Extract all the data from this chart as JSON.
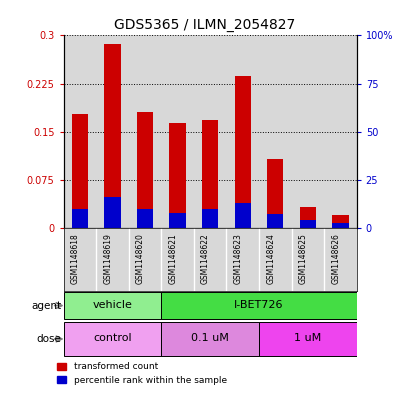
{
  "title": "GDS5365 / ILMN_2054827",
  "samples": [
    "GSM1148618",
    "GSM1148619",
    "GSM1148620",
    "GSM1148621",
    "GSM1148622",
    "GSM1148623",
    "GSM1148624",
    "GSM1148625",
    "GSM1148626"
  ],
  "transformed_count": [
    0.178,
    0.287,
    0.181,
    0.163,
    0.168,
    0.237,
    0.108,
    0.033,
    0.02
  ],
  "percentile_rank_pct": [
    10,
    16,
    10,
    8,
    10,
    13,
    7,
    4,
    2.5
  ],
  "ylim_left": [
    0,
    0.3
  ],
  "ylim_right": [
    0,
    100
  ],
  "yticks_left": [
    0,
    0.075,
    0.15,
    0.225,
    0.3
  ],
  "yticks_right": [
    0,
    25,
    50,
    75,
    100
  ],
  "ytick_labels_left": [
    "0",
    "0.075",
    "0.15",
    "0.225",
    "0.3"
  ],
  "ytick_labels_right": [
    "0",
    "25",
    "50",
    "75",
    "100%"
  ],
  "bar_color_red": "#cc0000",
  "bar_color_blue": "#0000cc",
  "agent_groups": [
    {
      "label": "vehicle",
      "start": 0,
      "end": 2,
      "color": "#90ee90"
    },
    {
      "label": "I-BET726",
      "start": 3,
      "end": 8,
      "color": "#44dd44"
    }
  ],
  "dose_groups": [
    {
      "label": "control",
      "start": 0,
      "end": 2,
      "color": "#f0a0f0"
    },
    {
      "label": "0.1 uM",
      "start": 3,
      "end": 5,
      "color": "#dd88dd"
    },
    {
      "label": "1 uM",
      "start": 6,
      "end": 8,
      "color": "#ee44ee"
    }
  ],
  "agent_label": "agent",
  "dose_label": "dose",
  "legend_red": "transformed count",
  "legend_blue": "percentile rank within the sample",
  "bg_color": "#d8d8d8",
  "title_fontsize": 10,
  "bar_width": 0.5
}
